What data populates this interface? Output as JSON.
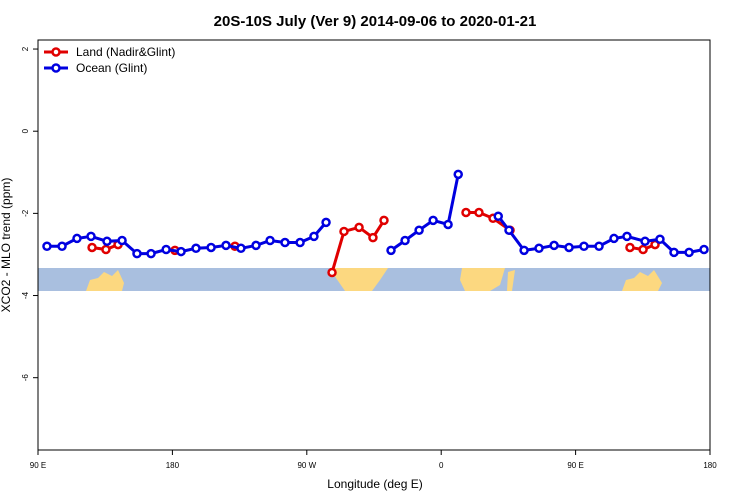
{
  "chart_data": {
    "type": "line",
    "title": "20S-10S July (Ver 9)   2014-09-06 to 2020-01-21",
    "xlabel": "Longitude (deg E)",
    "ylabel": "XCO2 - MLO trend (ppm)",
    "xlim": [
      90,
      540
    ],
    "ylim": [
      -7.76,
      2.22
    ],
    "xticks": [
      {
        "value": 90,
        "label": "90 E"
      },
      {
        "value": 180,
        "label": "180"
      },
      {
        "value": 270,
        "label": "90 W"
      },
      {
        "value": 360,
        "label": "0"
      },
      {
        "value": 450,
        "label": "90 E"
      },
      {
        "value": 540,
        "label": "180"
      }
    ],
    "yticks": [
      2,
      0,
      -2,
      -4,
      -6
    ],
    "legend": "top-left",
    "series": [
      {
        "name": "Land (Nadir&Glint)",
        "color": "#e00000",
        "x": [
          126.2,
          135.5,
          143.6,
          null,
          181.7,
          null,
          221.9,
          null,
          286.9,
          294.9,
          305,
          314.3,
          321.7,
          null,
          376.6,
          385.3,
          394.7,
          406.1,
          null,
          486.4,
          495.2,
          503.2
        ],
        "values": [
          -2.83,
          -2.88,
          -2.76,
          null,
          -2.9,
          null,
          -2.8,
          null,
          -3.44,
          -2.44,
          -2.34,
          -2.59,
          -2.17,
          null,
          -1.98,
          -1.98,
          -2.12,
          -2.41,
          null,
          -2.83,
          -2.88,
          -2.76
        ]
      },
      {
        "name": "Ocean (Glint)",
        "color": "#0000e0",
        "x": [
          96,
          106.1,
          116.1,
          125.5,
          136.2,
          146.3,
          156.3,
          165.7,
          175.8,
          185.8,
          195.8,
          205.9,
          215.9,
          225.9,
          236,
          245.4,
          255.4,
          265.5,
          274.8,
          282.9,
          null,
          326.4,
          335.8,
          345.2,
          354.6,
          364.6,
          371.4,
          null,
          398.2,
          405.4,
          415.5,
          425.5,
          435.6,
          445.6,
          455.6,
          465.7,
          475.7,
          484.4,
          496.5,
          506.5,
          515.9,
          526,
          536
        ],
        "values": [
          -2.8,
          -2.8,
          -2.61,
          -2.56,
          -2.68,
          -2.66,
          -2.98,
          -2.98,
          -2.88,
          -2.93,
          -2.85,
          -2.83,
          -2.78,
          -2.85,
          -2.78,
          -2.66,
          -2.71,
          -2.71,
          -2.56,
          -2.22,
          null,
          -2.9,
          -2.66,
          -2.41,
          -2.17,
          -2.27,
          -1.05,
          null,
          -2.07,
          -2.41,
          -2.9,
          -2.85,
          -2.78,
          -2.83,
          -2.8,
          -2.8,
          -2.61,
          -2.56,
          -2.68,
          -2.63,
          -2.95,
          -2.95,
          -2.88
        ]
      }
    ]
  }
}
